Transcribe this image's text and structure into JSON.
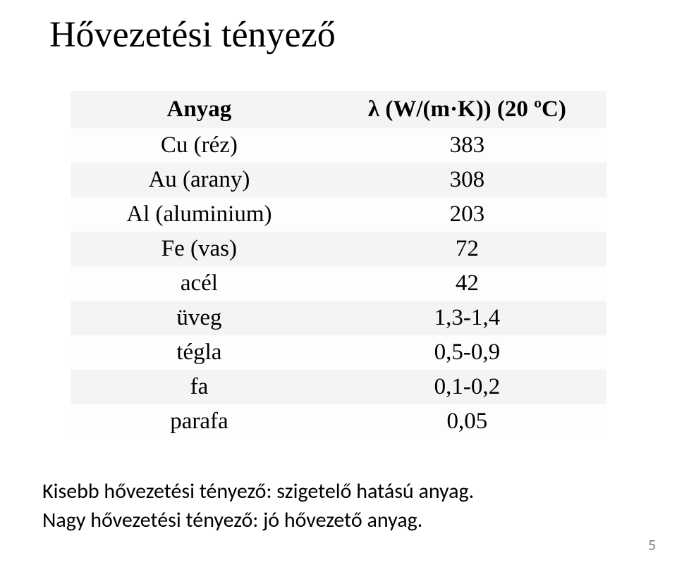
{
  "title": "Hővezetési tényező",
  "table": {
    "columns": [
      "Anyag",
      "λ (W/(m·K)) (20 ºC)"
    ],
    "rows": [
      [
        "Cu (réz)",
        "383"
      ],
      [
        "Au (arany)",
        "308"
      ],
      [
        "Al (aluminium)",
        "203"
      ],
      [
        "Fe (vas)",
        "72"
      ],
      [
        "acél",
        "42"
      ],
      [
        "üveg",
        "1,3-1,4"
      ],
      [
        "tégla",
        "0,5-0,9"
      ],
      [
        "fa",
        "0,1-0,2"
      ],
      [
        "parafa",
        "0,05"
      ]
    ],
    "header_bg": "#f4f4f4",
    "row_odd_bg": "#f4f4f4",
    "row_even_bg": "#fdfdfd",
    "fontsize": 33,
    "font_family": "Georgia, 'Times New Roman', serif"
  },
  "notes": {
    "line1": "Kisebb hővezetési tényező: szigetelő hatású anyag.",
    "line2": "Nagy hővezetési tényező: jó hővezető anyag."
  },
  "page_number": "5",
  "background_color": "#ffffff",
  "text_color": "#000000",
  "title_fontsize": 52
}
